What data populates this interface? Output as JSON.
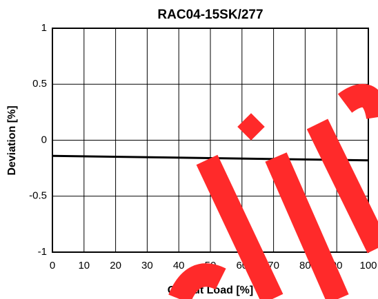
{
  "chart_data": {
    "type": "line",
    "title": "RAC04-15SK/277",
    "x_label": "Output Load [%]",
    "y_label": "Deviation [%]",
    "x": [
      0,
      50,
      100
    ],
    "series": [
      {
        "name": "RAC04-15SK/277",
        "color": "#000000",
        "values": [
          -0.14,
          -0.16,
          -0.18
        ]
      }
    ],
    "xlim": [
      0,
      100
    ],
    "xticks": [
      0,
      10,
      20,
      30,
      40,
      50,
      60,
      70,
      80,
      90,
      100
    ],
    "ylim": [
      -1,
      1
    ],
    "yticks": [
      -1,
      -0.5,
      0,
      0.5,
      1
    ],
    "grid": true
  }
}
